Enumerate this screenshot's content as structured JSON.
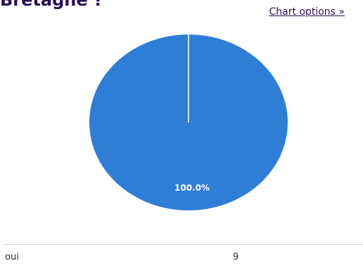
{
  "question": {
    "title": "Bretagne ?"
  },
  "chart_options_label": "Chart options »",
  "colors": {
    "slice": "#2e7ed8",
    "title": "#2b0c57"
  },
  "chart_data": {
    "type": "pie",
    "categories": [
      "oui"
    ],
    "values": [
      9
    ],
    "percent_labels": [
      "100.0%"
    ]
  },
  "results": [
    {
      "label": "oui",
      "count": "9"
    }
  ]
}
